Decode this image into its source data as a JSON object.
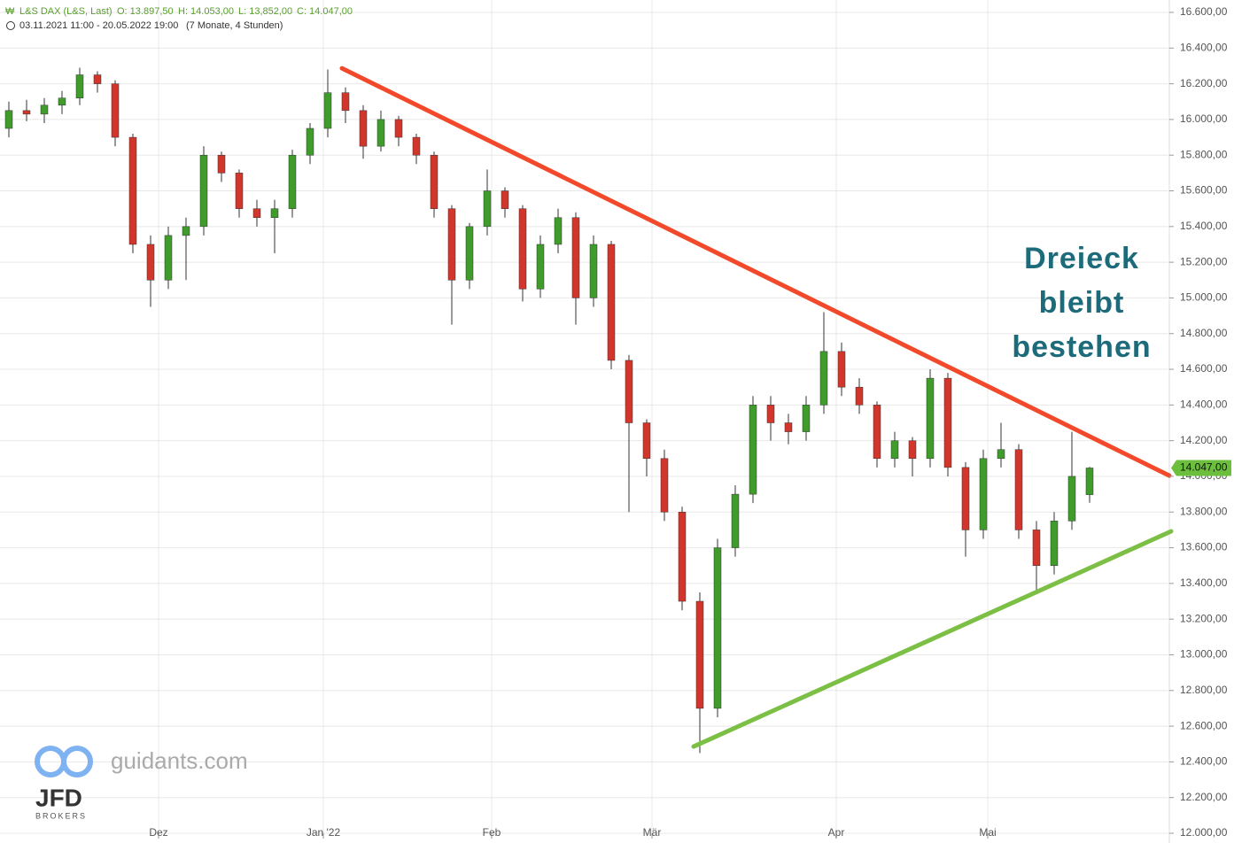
{
  "header": {
    "instrument": "L&S DAX (L&S, Last)",
    "open": "O: 13.897,50",
    "high": "H: 14.053,00",
    "low": "L: 13,852,00",
    "close": "C: 14.047,00",
    "period": "03.11.2021 11:00 - 20.05.2022 19:00",
    "span": "(7 Monate, 4 Stunden)"
  },
  "watermark": {
    "site": "guidants.com",
    "brand": "JFD",
    "sub": "BROKERS"
  },
  "chart_data": {
    "type": "candlestick",
    "annotation": [
      "Dreieck",
      "bleibt",
      "bestehen"
    ],
    "colors": {
      "up": "#3f9c2b",
      "down": "#d2352b"
    },
    "categories": [
      null,
      null,
      null,
      null,
      null,
      null,
      null,
      null,
      null,
      null,
      null,
      null,
      null,
      null,
      null,
      null,
      null,
      null,
      null,
      null,
      null,
      null,
      null,
      null,
      null,
      null,
      null,
      null,
      null,
      null,
      null,
      null,
      null,
      null,
      null,
      null,
      null,
      null,
      null,
      null,
      null,
      null,
      null,
      null,
      null,
      null,
      null,
      null,
      null,
      null,
      null,
      null,
      null,
      null,
      null,
      null,
      null,
      null,
      null,
      null,
      null,
      null
    ],
    "open": [
      15950,
      16050,
      16030,
      16080,
      16120,
      16250,
      16200,
      15900,
      15300,
      15100,
      15350,
      15400,
      15800,
      15700,
      15500,
      15450,
      15500,
      15800,
      15950,
      16150,
      16050,
      15850,
      16000,
      15900,
      15800,
      15500,
      15100,
      15400,
      15600,
      15500,
      15050,
      15300,
      15450,
      15000,
      15300,
      14650,
      14300,
      14100,
      13800,
      13300,
      12700,
      13600,
      13900,
      14400,
      14300,
      14250,
      14400,
      14700,
      14500,
      14400,
      14100,
      14200,
      14100,
      14550,
      14050,
      13700,
      14100,
      14150,
      13700,
      13500,
      13750,
      13897.5
    ],
    "high": [
      16100,
      16110,
      16120,
      16160,
      16290,
      16270,
      16220,
      15920,
      15350,
      15400,
      15450,
      15850,
      15820,
      15720,
      15550,
      15550,
      15830,
      15980,
      16280,
      16180,
      16080,
      16050,
      16020,
      15920,
      15820,
      15520,
      15420,
      15720,
      15620,
      15520,
      15350,
      15500,
      15480,
      15350,
      15320,
      14680,
      14320,
      14150,
      13830,
      13350,
      13650,
      13950,
      14450,
      14450,
      14350,
      14450,
      14920,
      14750,
      14550,
      14420,
      14250,
      14220,
      14600,
      14580,
      14080,
      14150,
      14300,
      14180,
      13750,
      13800,
      14250,
      14053
    ],
    "low": [
      15900,
      15990,
      15980,
      16030,
      16080,
      16150,
      15850,
      15250,
      14950,
      15050,
      15100,
      15350,
      15650,
      15450,
      15400,
      15250,
      15450,
      15750,
      15900,
      15980,
      15780,
      15820,
      15850,
      15750,
      15450,
      14850,
      15050,
      15350,
      15450,
      14980,
      15000,
      15250,
      14850,
      14950,
      14600,
      13800,
      14000,
      13750,
      13250,
      12450,
      12650,
      13550,
      13850,
      14200,
      14180,
      14200,
      14350,
      14450,
      14350,
      14050,
      14050,
      14000,
      14050,
      14000,
      13550,
      13650,
      14050,
      13650,
      13350,
      13450,
      13700,
      13852
    ],
    "close": [
      16050,
      16030,
      16080,
      16120,
      16250,
      16200,
      15900,
      15300,
      15100,
      15350,
      15400,
      15800,
      15700,
      15500,
      15450,
      15500,
      15800,
      15950,
      16150,
      16050,
      15850,
      16000,
      15900,
      15800,
      15500,
      15100,
      15400,
      15600,
      15500,
      15050,
      15300,
      15450,
      15000,
      15300,
      14650,
      14300,
      14100,
      13800,
      13300,
      12700,
      13600,
      13900,
      14400,
      14300,
      14250,
      14400,
      14700,
      14500,
      14400,
      14100,
      14200,
      14100,
      14550,
      14050,
      13700,
      14100,
      14150,
      13700,
      13500,
      13750,
      14000,
      14047
    ],
    "last": {
      "value": 14047,
      "label": "14.047,00",
      "color": "#6cbf3c"
    },
    "trendlines": [
      {
        "color": "#f2492b",
        "points": [
          [
            18.8,
            16287
          ],
          [
            65.5,
            14004
          ]
        ]
      },
      {
        "color": "#7cbf45",
        "points": [
          [
            38.65,
            12486
          ],
          [
            65.6,
            13692
          ]
        ]
      }
    ],
    "xlim": [
      -0.5,
      65.5
    ],
    "xticks": [
      {
        "value": 8.45,
        "label": "Dez"
      },
      {
        "value": 17.75,
        "label": "Jan '22"
      },
      {
        "value": 27.25,
        "label": "Feb"
      },
      {
        "value": 36.3,
        "label": "Mär"
      },
      {
        "value": 46.7,
        "label": "Apr"
      },
      {
        "value": 55.25,
        "label": "Mai"
      }
    ],
    "ylim": [
      12000,
      16600
    ],
    "yticks": [
      {
        "value": 12000,
        "label": "12.000,00"
      },
      {
        "value": 12200,
        "label": "12.200,00"
      },
      {
        "value": 12400,
        "label": "12.400,00"
      },
      {
        "value": 12600,
        "label": "12.600,00"
      },
      {
        "value": 12800,
        "label": "12.800,00"
      },
      {
        "value": 13000,
        "label": "13.000,00"
      },
      {
        "value": 13200,
        "label": "13.200,00"
      },
      {
        "value": 13400,
        "label": "13.400,00"
      },
      {
        "value": 13600,
        "label": "13.600,00"
      },
      {
        "value": 13800,
        "label": "13.800,00"
      },
      {
        "value": 14000,
        "label": "14.000,00"
      },
      {
        "value": 14200,
        "label": "14.200,00"
      },
      {
        "value": 14400,
        "label": "14.400,00"
      },
      {
        "value": 14600,
        "label": "14.600,00"
      },
      {
        "value": 14800,
        "label": "14.800,00"
      },
      {
        "value": 15000,
        "label": "15.000,00"
      },
      {
        "value": 15200,
        "label": "15.200,00"
      },
      {
        "value": 15400,
        "label": "15.400,00"
      },
      {
        "value": 15600,
        "label": "15.600,00"
      },
      {
        "value": 15800,
        "label": "15.800,00"
      },
      {
        "value": 16000,
        "label": "16.000,00"
      },
      {
        "value": 16200,
        "label": "16.200,00"
      },
      {
        "value": 16400,
        "label": "16.400,00"
      },
      {
        "value": 16600,
        "label": "16.600,00"
      }
    ],
    "grid": true
  }
}
